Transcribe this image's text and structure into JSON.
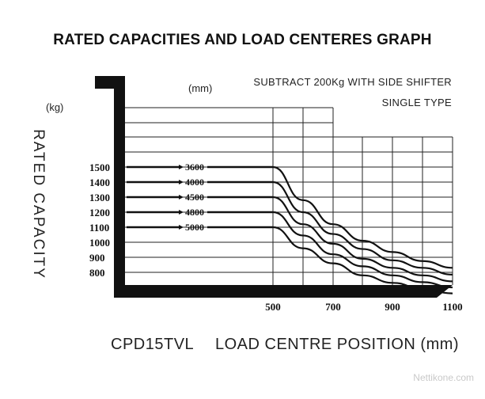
{
  "title": "RATED CAPACITIES AND LOAD CENTERES GRAPH",
  "notes": {
    "line1": "SUBTRACT 200Kg WITH SIDE SHIFTER",
    "line2": "SINGLE TYPE"
  },
  "units": {
    "x": "(mm)",
    "y": "(kg)"
  },
  "ylabel": "RATED CAPACITY",
  "footer": {
    "model": "CPD15TVL",
    "xlabel": "LOAD CENTRE POSITION (mm)"
  },
  "watermark": "Nettikone.com",
  "chart_data": {
    "type": "line",
    "xlim": [
      500,
      1100
    ],
    "ylim": [
      700,
      1800
    ],
    "x_ticks": [
      "500",
      "700",
      "900",
      "1100"
    ],
    "y_ticks": [
      "1500",
      "1400",
      "1300",
      "1200",
      "1100",
      "1000",
      "900",
      "800"
    ],
    "grid": true,
    "series": [
      {
        "name": "3600",
        "x": [
          500,
          600,
          700,
          800,
          900,
          1000,
          1100
        ],
        "y": [
          1500,
          1280,
          1120,
          1010,
          935,
          875,
          830
        ]
      },
      {
        "name": "4000",
        "x": [
          500,
          600,
          700,
          800,
          900,
          1000,
          1100
        ],
        "y": [
          1400,
          1200,
          1055,
          955,
          880,
          830,
          785
        ]
      },
      {
        "name": "4500",
        "x": [
          500,
          600,
          700,
          800,
          900,
          1000,
          1100
        ],
        "y": [
          1300,
          1120,
          990,
          890,
          830,
          780,
          740
        ]
      },
      {
        "name": "4800",
        "x": [
          500,
          600,
          700,
          800,
          900,
          1000,
          1100
        ],
        "y": [
          1200,
          1045,
          920,
          840,
          780,
          735,
          700
        ]
      },
      {
        "name": "5000",
        "x": [
          500,
          600,
          700,
          800,
          900,
          1000,
          1100
        ],
        "y": [
          1100,
          960,
          860,
          780,
          730,
          690,
          660
        ]
      }
    ]
  }
}
